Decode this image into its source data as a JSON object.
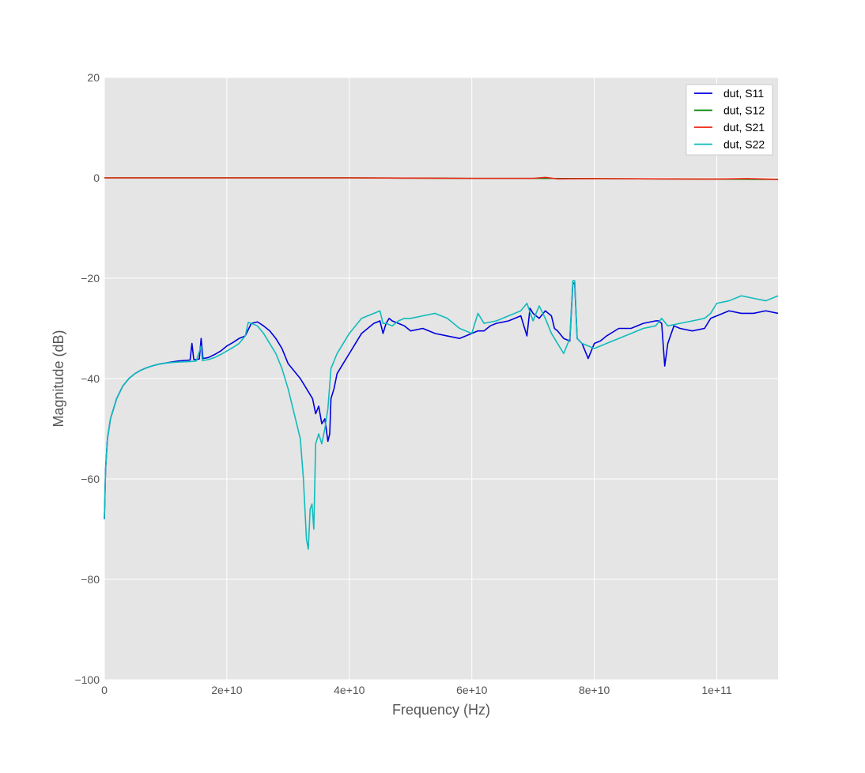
{
  "chart_data": {
    "type": "line",
    "xlabel": "Frequency (Hz)",
    "ylabel": "Magnitude (dB)",
    "xlim": [
      0,
      110000000000
    ],
    "ylim": [
      -100,
      20
    ],
    "xticks": [
      {
        "value": 0,
        "label": "0"
      },
      {
        "value": 20000000000,
        "label": "2e+10"
      },
      {
        "value": 40000000000,
        "label": "4e+10"
      },
      {
        "value": 60000000000,
        "label": "6e+10"
      },
      {
        "value": 80000000000,
        "label": "8e+10"
      },
      {
        "value": 100000000000,
        "label": "1e+11"
      }
    ],
    "yticks": [
      {
        "value": 20,
        "label": "20"
      },
      {
        "value": 0,
        "label": "0"
      },
      {
        "value": -20,
        "label": "−20"
      },
      {
        "value": -40,
        "label": "−40"
      },
      {
        "value": -60,
        "label": "−60"
      },
      {
        "value": -80,
        "label": "−80"
      },
      {
        "value": -100,
        "label": "−100"
      }
    ],
    "grid": true,
    "legend_position": "top-right",
    "background": "#e5e5e5",
    "series": [
      {
        "name": "dut, S11",
        "color": "#0000dd",
        "x": [
          0,
          200000000.0,
          500000000.0,
          1000000000.0,
          2000000000.0,
          3000000000.0,
          4000000000.0,
          5000000000.0,
          6000000000.0,
          7000000000.0,
          8000000000.0,
          9000000000.0,
          10000000000.0,
          11000000000.0,
          12000000000.0,
          13000000000.0,
          14000000000.0,
          14300000000.0,
          14600000000.0,
          15000000000.0,
          15500000000.0,
          15800000000.0,
          16100000000.0,
          17000000000.0,
          18000000000.0,
          19000000000.0,
          20000000000.0,
          21000000000.0,
          22000000000.0,
          23000000000.0,
          24000000000.0,
          25000000000.0,
          26000000000.0,
          27000000000.0,
          28000000000.0,
          29000000000.0,
          30000000000.0,
          31000000000.0,
          32000000000.0,
          33000000000.0,
          34000000000.0,
          34500000000.0,
          35000000000.0,
          35500000000.0,
          36000000000.0,
          36500000000.0,
          36800000000.0,
          37000000000.0,
          37500000000.0,
          38000000000.0,
          39000000000.0,
          40000000000.0,
          41000000000.0,
          42000000000.0,
          43000000000.0,
          44000000000.0,
          45000000000.0,
          45500000000.0,
          46000000000.0,
          46500000000.0,
          47000000000.0,
          48000000000.0,
          49000000000.0,
          50000000000.0,
          52000000000.0,
          54000000000.0,
          56000000000.0,
          58000000000.0,
          60000000000.0,
          61000000000.0,
          62000000000.0,
          63000000000.0,
          64000000000.0,
          66000000000.0,
          68000000000.0,
          69000000000.0,
          69500000000.0,
          70000000000.0,
          71000000000.0,
          72000000000.0,
          73000000000.0,
          73500000000.0,
          74000000000.0,
          75000000000.0,
          76000000000.0,
          76500000000.0,
          76800000000.0,
          77200000000.0,
          78000000000.0,
          79000000000.0,
          80000000000.0,
          81000000000.0,
          82000000000.0,
          84000000000.0,
          86000000000.0,
          88000000000.0,
          90000000000.0,
          90500000000.0,
          91000000000.0,
          91500000000.0,
          92000000000.0,
          93000000000.0,
          94000000000.0,
          96000000000.0,
          98000000000.0,
          99000000000.0,
          100000000000.0,
          102000000000.0,
          104000000000.0,
          106000000000.0,
          108000000000.0,
          110000000000.0
        ],
        "y": [
          -68,
          -58,
          -52,
          -48,
          -44,
          -41.5,
          -40,
          -39,
          -38.3,
          -37.8,
          -37.4,
          -37.1,
          -36.9,
          -36.7,
          -36.5,
          -36.4,
          -36.3,
          -33,
          -36.2,
          -36.2,
          -36.1,
          -32,
          -36,
          -35.8,
          -35.2,
          -34.5,
          -33.5,
          -32.8,
          -32,
          -31.5,
          -29,
          -28.7,
          -29.5,
          -30.5,
          -32,
          -34,
          -37,
          -38.5,
          -40,
          -42,
          -44,
          -47,
          -45.5,
          -49,
          -48,
          -52.5,
          -51,
          -44,
          -42,
          -39,
          -37,
          -35,
          -33,
          -31,
          -30,
          -29,
          -28.5,
          -31,
          -29,
          -28,
          -28.5,
          -29,
          -29.5,
          -30.5,
          -30,
          -31,
          -31.5,
          -32,
          -31,
          -30.5,
          -30.5,
          -29.5,
          -29,
          -28.5,
          -27.5,
          -31.5,
          -26,
          -27,
          -28,
          -26.5,
          -27.5,
          -30,
          -30.5,
          -32,
          -32.5,
          -21,
          -21,
          -32,
          -33,
          -36,
          -33,
          -32.5,
          -31.5,
          -30,
          -30,
          -29,
          -28.5,
          -28.5,
          -29,
          -37.5,
          -33,
          -29.5,
          -30,
          -30.5,
          -30,
          -28,
          -27.5,
          -26.5,
          -27,
          -27,
          -26.5,
          -27
        ]
      },
      {
        "name": "dut, S12",
        "color": "#008000",
        "x": [
          0,
          10000000000.0,
          20000000000.0,
          30000000000.0,
          40000000000.0,
          50000000000.0,
          60000000000.0,
          70000000000.0,
          80000000000.0,
          90000000000.0,
          100000000000.0,
          110000000000.0
        ],
        "y": [
          0,
          0,
          0,
          0,
          0,
          -0.05,
          -0.1,
          -0.1,
          -0.15,
          -0.2,
          -0.25,
          -0.3
        ]
      },
      {
        "name": "dut, S21",
        "color": "#ee2211",
        "x": [
          0,
          10000000000.0,
          20000000000.0,
          30000000000.0,
          40000000000.0,
          50000000000.0,
          60000000000.0,
          70000000000.0,
          72000000000.0,
          74000000000.0,
          80000000000.0,
          90000000000.0,
          100000000000.0,
          105000000000.0,
          110000000000.0
        ],
        "y": [
          0,
          0,
          0,
          0,
          0,
          -0.05,
          -0.1,
          -0.1,
          0.1,
          -0.2,
          -0.15,
          -0.2,
          -0.25,
          -0.15,
          -0.3
        ]
      },
      {
        "name": "dut, S22",
        "color": "#11bbbb",
        "x": [
          0,
          200000000.0,
          500000000.0,
          1000000000.0,
          2000000000.0,
          3000000000.0,
          4000000000.0,
          5000000000.0,
          6000000000.0,
          7000000000.0,
          8000000000.0,
          9000000000.0,
          10000000000.0,
          12000000000.0,
          14000000000.0,
          15000000000.0,
          15800000000.0,
          16000000000.0,
          17000000000.0,
          18000000000.0,
          19000000000.0,
          20000000000.0,
          21000000000.0,
          22000000000.0,
          23000000000.0,
          23500000000.0,
          24000000000.0,
          25000000000.0,
          26000000000.0,
          27000000000.0,
          28000000000.0,
          29000000000.0,
          30000000000.0,
          31000000000.0,
          32000000000.0,
          32500000000.0,
          33000000000.0,
          33300000000.0,
          33600000000.0,
          33900000000.0,
          34200000000.0,
          34500000000.0,
          35000000000.0,
          35500000000.0,
          36000000000.0,
          36500000000.0,
          37000000000.0,
          38000000000.0,
          39000000000.0,
          40000000000.0,
          41000000000.0,
          42000000000.0,
          44000000000.0,
          45000000000.0,
          45500000000.0,
          46000000000.0,
          47000000000.0,
          48000000000.0,
          49000000000.0,
          50000000000.0,
          52000000000.0,
          54000000000.0,
          56000000000.0,
          58000000000.0,
          60000000000.0,
          61000000000.0,
          62000000000.0,
          64000000000.0,
          66000000000.0,
          68000000000.0,
          69000000000.0,
          70000000000.0,
          71000000000.0,
          72000000000.0,
          73000000000.0,
          74000000000.0,
          75000000000.0,
          76000000000.0,
          76500000000.0,
          76800000000.0,
          77200000000.0,
          78000000000.0,
          80000000000.0,
          82000000000.0,
          84000000000.0,
          86000000000.0,
          88000000000.0,
          90000000000.0,
          91000000000.0,
          92000000000.0,
          94000000000.0,
          96000000000.0,
          98000000000.0,
          99000000000.0,
          100000000000.0,
          102000000000.0,
          104000000000.0,
          106000000000.0,
          108000000000.0,
          110000000000.0
        ],
        "y": [
          -68,
          -58,
          -52,
          -48,
          -44,
          -41.5,
          -40,
          -39,
          -38.3,
          -37.8,
          -37.4,
          -37.1,
          -36.9,
          -36.7,
          -36.6,
          -36.5,
          -33.5,
          -36.4,
          -36.2,
          -35.8,
          -35.2,
          -34.5,
          -33.8,
          -33,
          -31.5,
          -28.8,
          -29,
          -29.5,
          -31,
          -33,
          -35,
          -38,
          -42,
          -47,
          -52,
          -60,
          -72,
          -74,
          -66,
          -65,
          -70,
          -53,
          -51,
          -53,
          -50,
          -46,
          -38,
          -35,
          -33,
          -31,
          -29.5,
          -28,
          -27,
          -26.5,
          -29,
          -29,
          -29.5,
          -28.5,
          -28,
          -28,
          -27.5,
          -27,
          -28,
          -30,
          -31,
          -27,
          -29,
          -28.5,
          -27.5,
          -26.5,
          -25,
          -28.5,
          -25.5,
          -28,
          -31,
          -33,
          -35,
          -32,
          -20.5,
          -20.5,
          -32,
          -33,
          -34,
          -33,
          -32,
          -31,
          -30,
          -29.5,
          -28,
          -29.5,
          -29,
          -28.5,
          -28,
          -27,
          -25,
          -24.5,
          -23.5,
          -24,
          -24.5,
          -23.5
        ]
      }
    ]
  }
}
